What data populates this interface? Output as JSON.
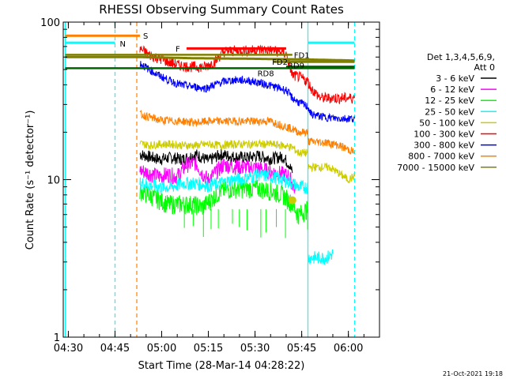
{
  "chart_data": {
    "type": "line",
    "title": "RHESSI Observing Summary Count Rates",
    "xlabel": "Start Time (28-Mar-14 04:28:22)",
    "ylabel": "Count Rate (s⁻¹ detector⁻¹)",
    "y_scale": "log",
    "ylim": [
      1,
      100
    ],
    "xlim": [
      "04:28:22",
      "06:10:00"
    ],
    "x_ticks": [
      "04:30",
      "04:45",
      "05:00",
      "05:15",
      "05:30",
      "05:45",
      "06:00"
    ],
    "y_ticks": [
      "1",
      "10",
      "100"
    ],
    "legend": {
      "placement": "right",
      "header": [
        "Det 1,3,4,5,6,9,",
        "Att 0"
      ],
      "entries": [
        {
          "name": "3 - 6 keV",
          "color": "#000000"
        },
        {
          "name": "6 - 12 keV",
          "color": "#ff00ff"
        },
        {
          "name": "12 - 25 keV",
          "color": "#00ff00"
        },
        {
          "name": "25 - 50 keV",
          "color": "#00ffff"
        },
        {
          "name": "50 - 100 keV",
          "color": "#cccc00"
        },
        {
          "name": "100 - 300 keV",
          "color": "#ff0000"
        },
        {
          "name": "300 - 800 keV",
          "color": "#0000ff"
        },
        {
          "name": "800 - 7000 keV",
          "color": "#ff8000"
        },
        {
          "name": "7000 - 15000 keV",
          "color": "#808000"
        }
      ]
    },
    "series": [
      {
        "name": "3 - 6 keV",
        "color": "#000000",
        "points": [
          [
            "04:53",
            14.5
          ],
          [
            "04:56",
            14
          ],
          [
            "04:59",
            13.5
          ],
          [
            "05:03",
            13.8
          ],
          [
            "05:07",
            13.5
          ],
          [
            "05:11",
            14.5
          ],
          [
            "05:15",
            13.2
          ],
          [
            "05:19",
            14.5
          ],
          [
            "05:23",
            14
          ],
          [
            "05:27",
            13.8
          ],
          [
            "05:31",
            14.2
          ],
          [
            "05:35",
            13.6
          ],
          [
            "05:39",
            14
          ],
          [
            "05:41",
            12.5
          ],
          [
            "05:42",
            11
          ]
        ]
      },
      {
        "name": "6 - 12 keV",
        "color": "#ff00ff",
        "points": [
          [
            "04:53",
            11.5
          ],
          [
            "04:56",
            11
          ],
          [
            "04:59",
            10.5
          ],
          [
            "05:02",
            10.8
          ],
          [
            "05:05",
            10.5
          ],
          [
            "05:08",
            12.5
          ],
          [
            "05:11",
            12.8
          ],
          [
            "05:13",
            11
          ],
          [
            "05:15",
            10
          ],
          [
            "05:17",
            11
          ],
          [
            "05:20",
            12.5
          ],
          [
            "05:23",
            12.2
          ],
          [
            "05:26",
            12
          ],
          [
            "05:29",
            12
          ],
          [
            "05:32",
            11.8
          ],
          [
            "05:35",
            11.2
          ],
          [
            "05:38",
            11
          ],
          [
            "05:41",
            10.5
          ],
          [
            "05:43",
            8.5
          ]
        ]
      },
      {
        "name": "12 - 25 keV",
        "color": "#00ff00",
        "points": [
          [
            "04:53",
            8.5
          ],
          [
            "04:56",
            8
          ],
          [
            "04:59",
            7.5
          ],
          [
            "05:02",
            7
          ],
          [
            "05:06",
            7
          ],
          [
            "05:10",
            7
          ],
          [
            "05:13",
            6.7
          ],
          [
            "05:16",
            7.5
          ],
          [
            "05:19",
            8.5
          ],
          [
            "05:23",
            8.8
          ],
          [
            "05:27",
            8.8
          ],
          [
            "05:31",
            8.8
          ],
          [
            "05:35",
            8.5
          ],
          [
            "05:39",
            8
          ],
          [
            "05:42",
            7
          ],
          [
            "05:44",
            6
          ],
          [
            "05:47",
            6.5
          ]
        ]
      },
      {
        "name": "25 - 50 keV",
        "color": "#00ffff",
        "points": [
          [
            "04:53",
            9.5
          ],
          [
            "04:56",
            9.3
          ],
          [
            "04:59",
            9
          ],
          [
            "05:03",
            9
          ],
          [
            "05:07",
            9.5
          ],
          [
            "05:11",
            9.5
          ],
          [
            "05:15",
            9.2
          ],
          [
            "05:19",
            9.5
          ],
          [
            "05:23",
            10
          ],
          [
            "05:27",
            10.2
          ],
          [
            "05:31",
            10.8
          ],
          [
            "05:35",
            10.5
          ],
          [
            "05:39",
            10
          ],
          [
            "05:42",
            9.5
          ],
          [
            "05:44",
            9
          ],
          [
            "05:47",
            9
          ],
          [
            "05:47",
            3.2
          ],
          [
            "05:53",
            3.2
          ],
          [
            "05:55",
            3.4
          ]
        ]
      },
      {
        "name": "50 - 100 keV",
        "color": "#cccc00",
        "points": [
          [
            "04:53",
            17
          ],
          [
            "04:56",
            16.5
          ],
          [
            "04:59",
            16.8
          ],
          [
            "05:03",
            16.8
          ],
          [
            "05:07",
            16.5
          ],
          [
            "05:11",
            16.5
          ],
          [
            "05:15",
            16.8
          ],
          [
            "05:19",
            16.5
          ],
          [
            "05:23",
            16.8
          ],
          [
            "05:27",
            16.8
          ],
          [
            "05:31",
            16.8
          ],
          [
            "05:35",
            16.8
          ],
          [
            "05:39",
            16.5
          ],
          [
            "05:42",
            16
          ],
          [
            "05:44",
            14.8
          ],
          [
            "05:47",
            14.8
          ],
          [
            "05:47",
            12
          ],
          [
            "05:54",
            12
          ],
          [
            "06:00",
            10
          ],
          [
            "06:02",
            10.5
          ]
        ]
      },
      {
        "name": "100 - 300 keV",
        "color": "#ff0000",
        "points": [
          [
            "04:53",
            68
          ],
          [
            "04:56",
            62
          ],
          [
            "04:59",
            59
          ],
          [
            "05:02",
            56
          ],
          [
            "05:06",
            53
          ],
          [
            "05:10",
            52
          ],
          [
            "05:14",
            52
          ],
          [
            "05:17",
            56
          ],
          [
            "05:20",
            65
          ],
          [
            "05:24",
            66
          ],
          [
            "05:28",
            66
          ],
          [
            "05:32",
            67
          ],
          [
            "05:36",
            66
          ],
          [
            "05:40",
            63
          ],
          [
            "05:42",
            46
          ],
          [
            "05:44",
            45
          ],
          [
            "05:47",
            42
          ],
          [
            "05:48",
            38
          ],
          [
            "05:51",
            33
          ],
          [
            "05:55",
            33
          ],
          [
            "06:00",
            33
          ],
          [
            "06:02",
            33
          ]
        ]
      },
      {
        "name": "300 - 800 keV",
        "color": "#0000ff",
        "points": [
          [
            "04:53",
            55
          ],
          [
            "04:56",
            50
          ],
          [
            "04:59",
            46
          ],
          [
            "05:02",
            43
          ],
          [
            "05:06",
            40
          ],
          [
            "05:10",
            39
          ],
          [
            "05:14",
            38
          ],
          [
            "05:17",
            40
          ],
          [
            "05:20",
            42
          ],
          [
            "05:24",
            43
          ],
          [
            "05:28",
            42.5
          ],
          [
            "05:32",
            41
          ],
          [
            "05:36",
            39
          ],
          [
            "05:40",
            37
          ],
          [
            "05:42",
            33
          ],
          [
            "05:44",
            31
          ],
          [
            "05:47",
            29
          ],
          [
            "05:48",
            26
          ],
          [
            "05:52",
            25
          ],
          [
            "05:56",
            24.5
          ],
          [
            "06:00",
            24.5
          ],
          [
            "06:02",
            24.5
          ]
        ]
      },
      {
        "name": "800 - 7000 keV",
        "color": "#ff8000",
        "points": [
          [
            "04:53",
            26
          ],
          [
            "04:56",
            25
          ],
          [
            "04:59",
            24
          ],
          [
            "05:03",
            23.5
          ],
          [
            "05:07",
            23.5
          ],
          [
            "05:11",
            23
          ],
          [
            "05:15",
            23.5
          ],
          [
            "05:19",
            23.5
          ],
          [
            "05:23",
            23.5
          ],
          [
            "05:27",
            23.5
          ],
          [
            "05:31",
            23.5
          ],
          [
            "05:35",
            23.5
          ],
          [
            "05:39",
            22
          ],
          [
            "05:42",
            21
          ],
          [
            "05:44",
            20
          ],
          [
            "05:47",
            20
          ],
          [
            "05:47",
            17.5
          ],
          [
            "05:53",
            17.2
          ],
          [
            "05:57",
            16.5
          ],
          [
            "06:00",
            15.5
          ],
          [
            "06:02",
            15
          ]
        ]
      },
      {
        "name": "7000 - 15000 keV",
        "color": "#808000",
        "points": [
          [
            "04:29",
            60
          ],
          [
            "04:45",
            60
          ],
          [
            "04:53",
            60
          ],
          [
            "05:10",
            59
          ],
          [
            "05:30",
            58.5
          ],
          [
            "05:45",
            58
          ],
          [
            "06:02",
            57
          ]
        ]
      }
    ],
    "flags": [
      {
        "label": "S",
        "color": "#ff8000",
        "from": "04:29",
        "to": "04:53",
        "y": 82
      },
      {
        "label": "N",
        "color": "#00ffff",
        "from": "04:29",
        "to": "04:45",
        "y": 74,
        "from2": "05:47",
        "to2": "06:02"
      },
      {
        "label": "F",
        "color": "#ff0000",
        "from": "05:08",
        "to": "05:40",
        "y": 68
      },
      {
        "label": "FD1",
        "color": "#808000",
        "from": "04:29",
        "to": "05:42",
        "y": 62
      },
      {
        "label": "FD2",
        "color": "#808000",
        "from": "05:36",
        "to": "06:02",
        "y": 56
      },
      {
        "label": "RD9",
        "color": "#006400",
        "from": "05:40",
        "to": "06:02",
        "y": 52
      },
      {
        "label": "RD8",
        "color": "#006400",
        "from": "04:29",
        "to": "06:02",
        "y": 51
      }
    ],
    "vlines": [
      {
        "time": "04:29",
        "color": "#00ffff",
        "style": "solid"
      },
      {
        "time": "04:45",
        "color": "#00ffff",
        "style": "dashed"
      },
      {
        "time": "04:52",
        "color": "#ff8000",
        "style": "dashed"
      },
      {
        "time": "05:47",
        "color": "#00ffff",
        "style": "solid"
      },
      {
        "time": "06:02",
        "color": "#00ffff",
        "style": "dashed"
      }
    ]
  },
  "footer": {
    "timestamp": "21-Oct-2021 19:18"
  }
}
